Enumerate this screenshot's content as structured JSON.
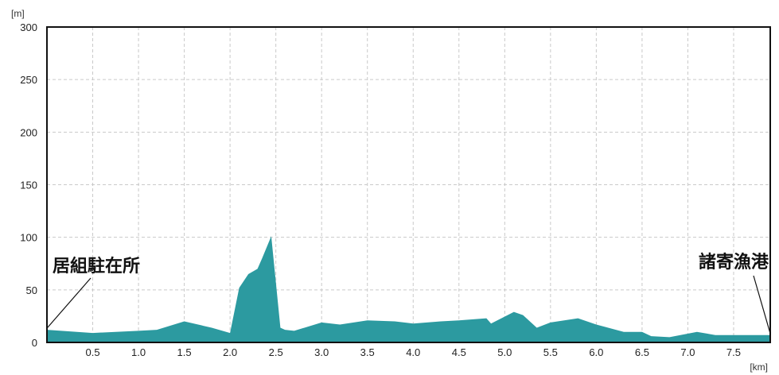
{
  "chart_data": {
    "type": "area",
    "ylabel": "[m]",
    "xlabel": "[km]",
    "xlim": [
      0,
      7.9
    ],
    "ylim": [
      0,
      300
    ],
    "x_ticks": [
      "0.5",
      "1.0",
      "1.5",
      "2.0",
      "2.5",
      "3.0",
      "3.5",
      "4.0",
      "4.5",
      "5.0",
      "5.5",
      "6.0",
      "6.5",
      "7.0",
      "7.5"
    ],
    "y_ticks": [
      "0",
      "50",
      "100",
      "150",
      "200",
      "250",
      "300"
    ],
    "grid": true,
    "fill_color": "#2c9aa0",
    "series": [
      {
        "x": [
          0,
          0.5,
          1.0,
          1.2,
          1.5,
          1.8,
          2.0,
          2.1,
          2.2,
          2.3,
          2.35,
          2.45,
          2.55,
          2.6,
          2.7,
          3.0,
          3.2,
          3.5,
          3.8,
          4.0,
          4.3,
          4.5,
          4.8,
          4.85,
          5.1,
          5.2,
          5.35,
          5.5,
          5.8,
          6.0,
          6.3,
          6.5,
          6.6,
          6.8,
          7.1,
          7.3,
          7.5,
          7.9
        ],
        "y": [
          12,
          9,
          11,
          12,
          20,
          14,
          9,
          52,
          65,
          70,
          80,
          101,
          14,
          12,
          11,
          19,
          17,
          21,
          20,
          18,
          20,
          21,
          23,
          18,
          29,
          26,
          14,
          19,
          23,
          17,
          10,
          10,
          6,
          5,
          10,
          7,
          7,
          7
        ]
      }
    ],
    "annotations": [
      {
        "text": "居組駐在所",
        "x": 0,
        "y": 12
      },
      {
        "text": "諸寄漁港",
        "x": 7.9,
        "y": 7
      }
    ]
  }
}
